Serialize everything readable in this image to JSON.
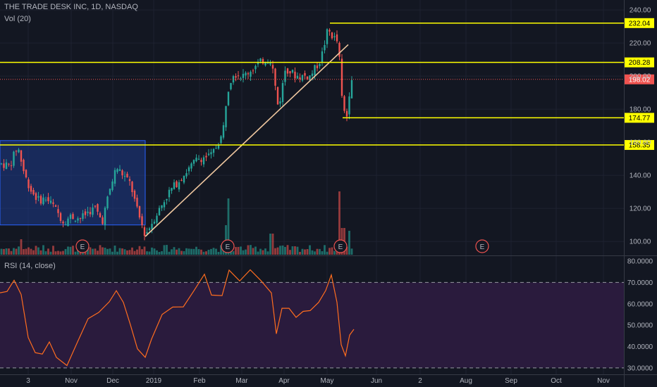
{
  "header": {
    "symbol_line": "THE TRADE DESK INC, 1D, NASDAQ",
    "volume_label": "Vol (20)",
    "rsi_label": "RSI (14, close)"
  },
  "colors": {
    "background": "#131722",
    "up": "#26a69a",
    "down": "#ef5350",
    "level_line": "#ffff00",
    "current_price": "#ef5350",
    "trendline": "#f0c8a0",
    "box_fill": "#1e3a8a",
    "rsi_line": "#ff6d1f",
    "rsi_band": "#2a1b3d"
  },
  "chart_data": {
    "type": "candlestick",
    "price_axis": {
      "ticks": [
        "240.00",
        "220.00",
        "200.00",
        "180.00",
        "160.00",
        "140.00",
        "120.00",
        "100.00"
      ],
      "range": [
        92,
        246
      ]
    },
    "x_axis_ticks": [
      "3",
      "Nov",
      "Dec",
      "2019",
      "Feb",
      "Mar",
      "Apr",
      "May",
      "Jun",
      "2",
      "Aug",
      "Sep",
      "Oct",
      "Nov"
    ],
    "levels": [
      {
        "name": "resistance-high",
        "value": "232.04"
      },
      {
        "name": "resistance-mid",
        "value": "208.28"
      },
      {
        "name": "support-low",
        "value": "174.77"
      },
      {
        "name": "support-base",
        "value": "158.35"
      }
    ],
    "current_price": "198.02",
    "earnings_markers": [
      "E",
      "E",
      "E",
      "E"
    ],
    "rsi": {
      "ticks": [
        "80.0000",
        "70.0000",
        "60.0000",
        "50.0000",
        "40.0000",
        "30.0000"
      ],
      "range": [
        27,
        82
      ],
      "upper_band": 70,
      "lower_band": 30
    }
  }
}
